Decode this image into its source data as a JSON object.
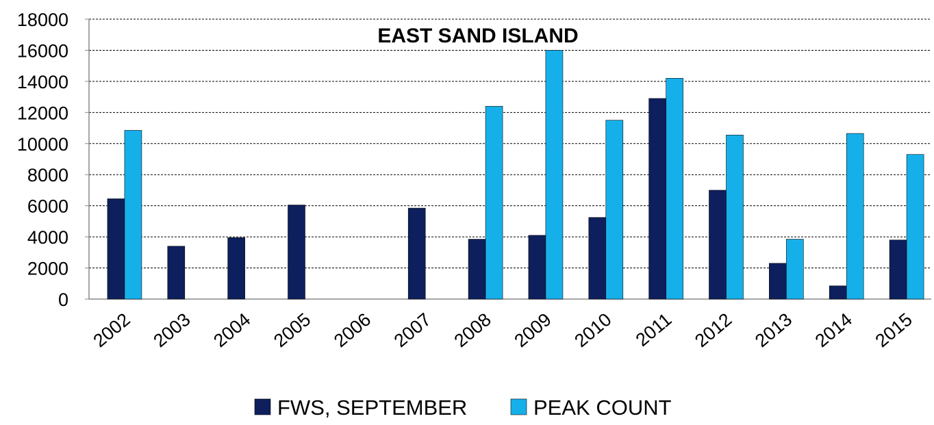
{
  "chart_data": {
    "type": "bar",
    "title": "EAST SAND ISLAND",
    "xlabel": "",
    "ylabel": "",
    "categories": [
      "2002",
      "2003",
      "2004",
      "2005",
      "2006",
      "2007",
      "2008",
      "2009",
      "2010",
      "2011",
      "2012",
      "2013",
      "2014",
      "2015"
    ],
    "series": [
      {
        "name": "FWS, SEPTEMBER",
        "color": "#0d1f5c",
        "values": [
          6450,
          3400,
          3950,
          6050,
          null,
          5850,
          3850,
          4100,
          5250,
          12900,
          7000,
          2300,
          850,
          3800
        ]
      },
      {
        "name": "PEAK COUNT",
        "color": "#15b0ea",
        "values": [
          10850,
          null,
          null,
          null,
          null,
          null,
          12400,
          16000,
          11500,
          14200,
          10550,
          3850,
          10650,
          9300
        ]
      }
    ],
    "ylim": [
      0,
      18000
    ],
    "yticks": [
      0,
      2000,
      4000,
      6000,
      8000,
      10000,
      12000,
      14000,
      16000,
      18000
    ],
    "grid": true,
    "legend_position": "bottom"
  }
}
